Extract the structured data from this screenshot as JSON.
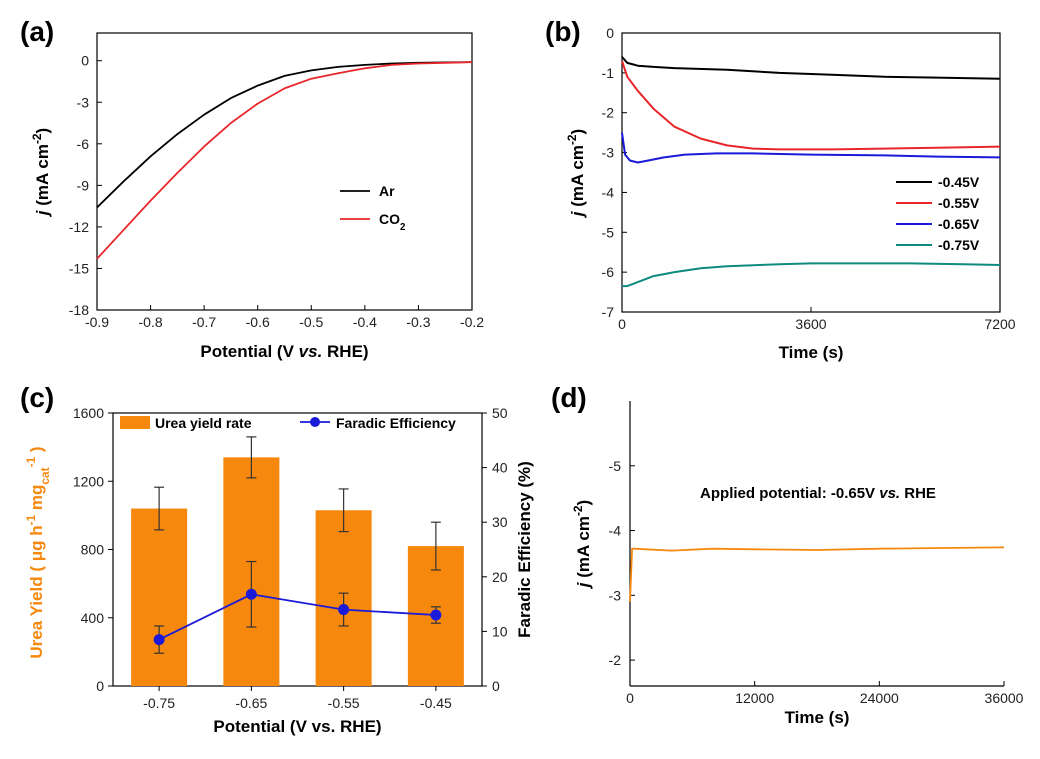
{
  "chart_data": [
    {
      "panel": "(a)",
      "type": "line",
      "xlabel": "Potential (V vs. RHE)",
      "ylabel": "j (mA cm-2)",
      "xlim": [
        -0.9,
        -0.2
      ],
      "ylim": [
        -18,
        2
      ],
      "xticks": [
        -0.9,
        -0.8,
        -0.7,
        -0.6,
        -0.5,
        -0.4,
        -0.3,
        -0.2
      ],
      "yticks": [
        0,
        -3,
        -6,
        -9,
        -12,
        -15,
        -18
      ],
      "legend_position": "center-right",
      "series": [
        {
          "name": "Ar",
          "color": "#000000",
          "x": [
            -0.9,
            -0.85,
            -0.8,
            -0.75,
            -0.7,
            -0.65,
            -0.6,
            -0.55,
            -0.5,
            -0.45,
            -0.4,
            -0.35,
            -0.3,
            -0.25,
            -0.2
          ],
          "y": [
            -10.6,
            -8.7,
            -6.9,
            -5.3,
            -3.9,
            -2.7,
            -1.8,
            -1.1,
            -0.7,
            -0.45,
            -0.3,
            -0.2,
            -0.15,
            -0.12,
            -0.1
          ]
        },
        {
          "name": "CO2",
          "color": "#e8262a",
          "x": [
            -0.9,
            -0.85,
            -0.8,
            -0.75,
            -0.7,
            -0.65,
            -0.6,
            -0.55,
            -0.5,
            -0.45,
            -0.4,
            -0.35,
            -0.3,
            -0.25,
            -0.2
          ],
          "y": [
            -14.3,
            -12.2,
            -10.1,
            -8.1,
            -6.2,
            -4.5,
            -3.1,
            -2.0,
            -1.3,
            -0.9,
            -0.55,
            -0.3,
            -0.2,
            -0.15,
            -0.1
          ]
        }
      ]
    },
    {
      "panel": "(b)",
      "type": "line",
      "xlabel": "Time (s)",
      "ylabel": "j (mA cm-2)",
      "xlim": [
        0,
        7200
      ],
      "ylim": [
        -7,
        0
      ],
      "xticks": [
        0,
        3600,
        7200
      ],
      "yticks": [
        0,
        -1,
        -2,
        -3,
        -4,
        -5,
        -6,
        -7
      ],
      "legend_position": "right",
      "series": [
        {
          "name": "-0.45V",
          "color": "#000000",
          "x": [
            0,
            100,
            300,
            600,
            1000,
            2000,
            3000,
            4000,
            5000,
            6000,
            7200
          ],
          "y": [
            -0.6,
            -0.75,
            -0.82,
            -0.85,
            -0.88,
            -0.92,
            -1.0,
            -1.05,
            -1.1,
            -1.12,
            -1.15
          ]
        },
        {
          "name": "-0.55V",
          "color": "#e8262a",
          "x": [
            0,
            100,
            300,
            600,
            1000,
            1500,
            2000,
            2500,
            3000,
            4000,
            5000,
            6000,
            7200
          ],
          "y": [
            -0.7,
            -1.1,
            -1.45,
            -1.9,
            -2.35,
            -2.65,
            -2.82,
            -2.9,
            -2.92,
            -2.92,
            -2.9,
            -2.88,
            -2.85
          ]
        },
        {
          "name": "-0.65V",
          "color": "#1a1ad8",
          "x": [
            0,
            60,
            150,
            300,
            500,
            800,
            1200,
            1800,
            2500,
            3600,
            5000,
            6000,
            7200
          ],
          "y": [
            -2.5,
            -3.05,
            -3.2,
            -3.25,
            -3.2,
            -3.12,
            -3.05,
            -3.02,
            -3.02,
            -3.05,
            -3.07,
            -3.1,
            -3.12
          ]
        },
        {
          "name": "-0.75V",
          "color": "#0f8a80",
          "x": [
            0,
            100,
            300,
            600,
            1000,
            1500,
            2000,
            3000,
            3600,
            4500,
            5500,
            6500,
            7200
          ],
          "y": [
            -6.35,
            -6.35,
            -6.25,
            -6.1,
            -6.0,
            -5.9,
            -5.85,
            -5.8,
            -5.78,
            -5.78,
            -5.78,
            -5.8,
            -5.82
          ]
        }
      ]
    },
    {
      "panel": "(c)",
      "type": "bar",
      "categories": [
        "-0.75",
        "-0.65",
        "-0.55",
        "-0.45"
      ],
      "xlabel": "Potential (V vs. RHE)",
      "ylabel": "Urea Yield ( μg h-1 mgcat-1 )",
      "y2label": "Faradic Efficiency (%)",
      "ylim": [
        0,
        1600
      ],
      "y2lim": [
        0,
        50
      ],
      "yticks": [
        0,
        400,
        800,
        1200,
        1600
      ],
      "y2ticks": [
        0,
        10,
        20,
        30,
        40,
        50
      ],
      "legend_position": "top",
      "series": [
        {
          "name": "Urea yield rate",
          "color": "#f7880e",
          "axis": "left",
          "values": [
            1040,
            1340,
            1030,
            820
          ],
          "errors": [
            125,
            120,
            125,
            140
          ]
        },
        {
          "name": "Faradic Efficiency",
          "color": "#1a1ad8",
          "axis": "right",
          "values": [
            8.5,
            16.8,
            14.0,
            13.0
          ],
          "errors": [
            2.5,
            6.0,
            3.0,
            1.5
          ]
        }
      ]
    },
    {
      "panel": "(d)",
      "type": "line",
      "xlabel": "Time (s)",
      "ylabel": "j (mA cm-2)",
      "xlim": [
        0,
        36000
      ],
      "ylim": [
        -1.6,
        -6.0
      ],
      "xticks": [
        0,
        12000,
        24000,
        36000
      ],
      "yticks": [
        -2,
        -3,
        -4,
        -5
      ],
      "annotation": "Applied potential: -0.65V vs. RHE",
      "series": [
        {
          "name": "",
          "color": "#f7880e",
          "x": [
            0,
            200,
            500,
            1500,
            4000,
            8000,
            12000,
            18000,
            24000,
            30000,
            36000
          ],
          "y": [
            -2.9,
            -3.72,
            -3.72,
            -3.71,
            -3.69,
            -3.72,
            -3.71,
            -3.7,
            -3.72,
            -3.73,
            -3.74
          ]
        }
      ]
    }
  ],
  "panel_labels": [
    "(a)",
    "(b)",
    "(c)",
    "(d)"
  ]
}
